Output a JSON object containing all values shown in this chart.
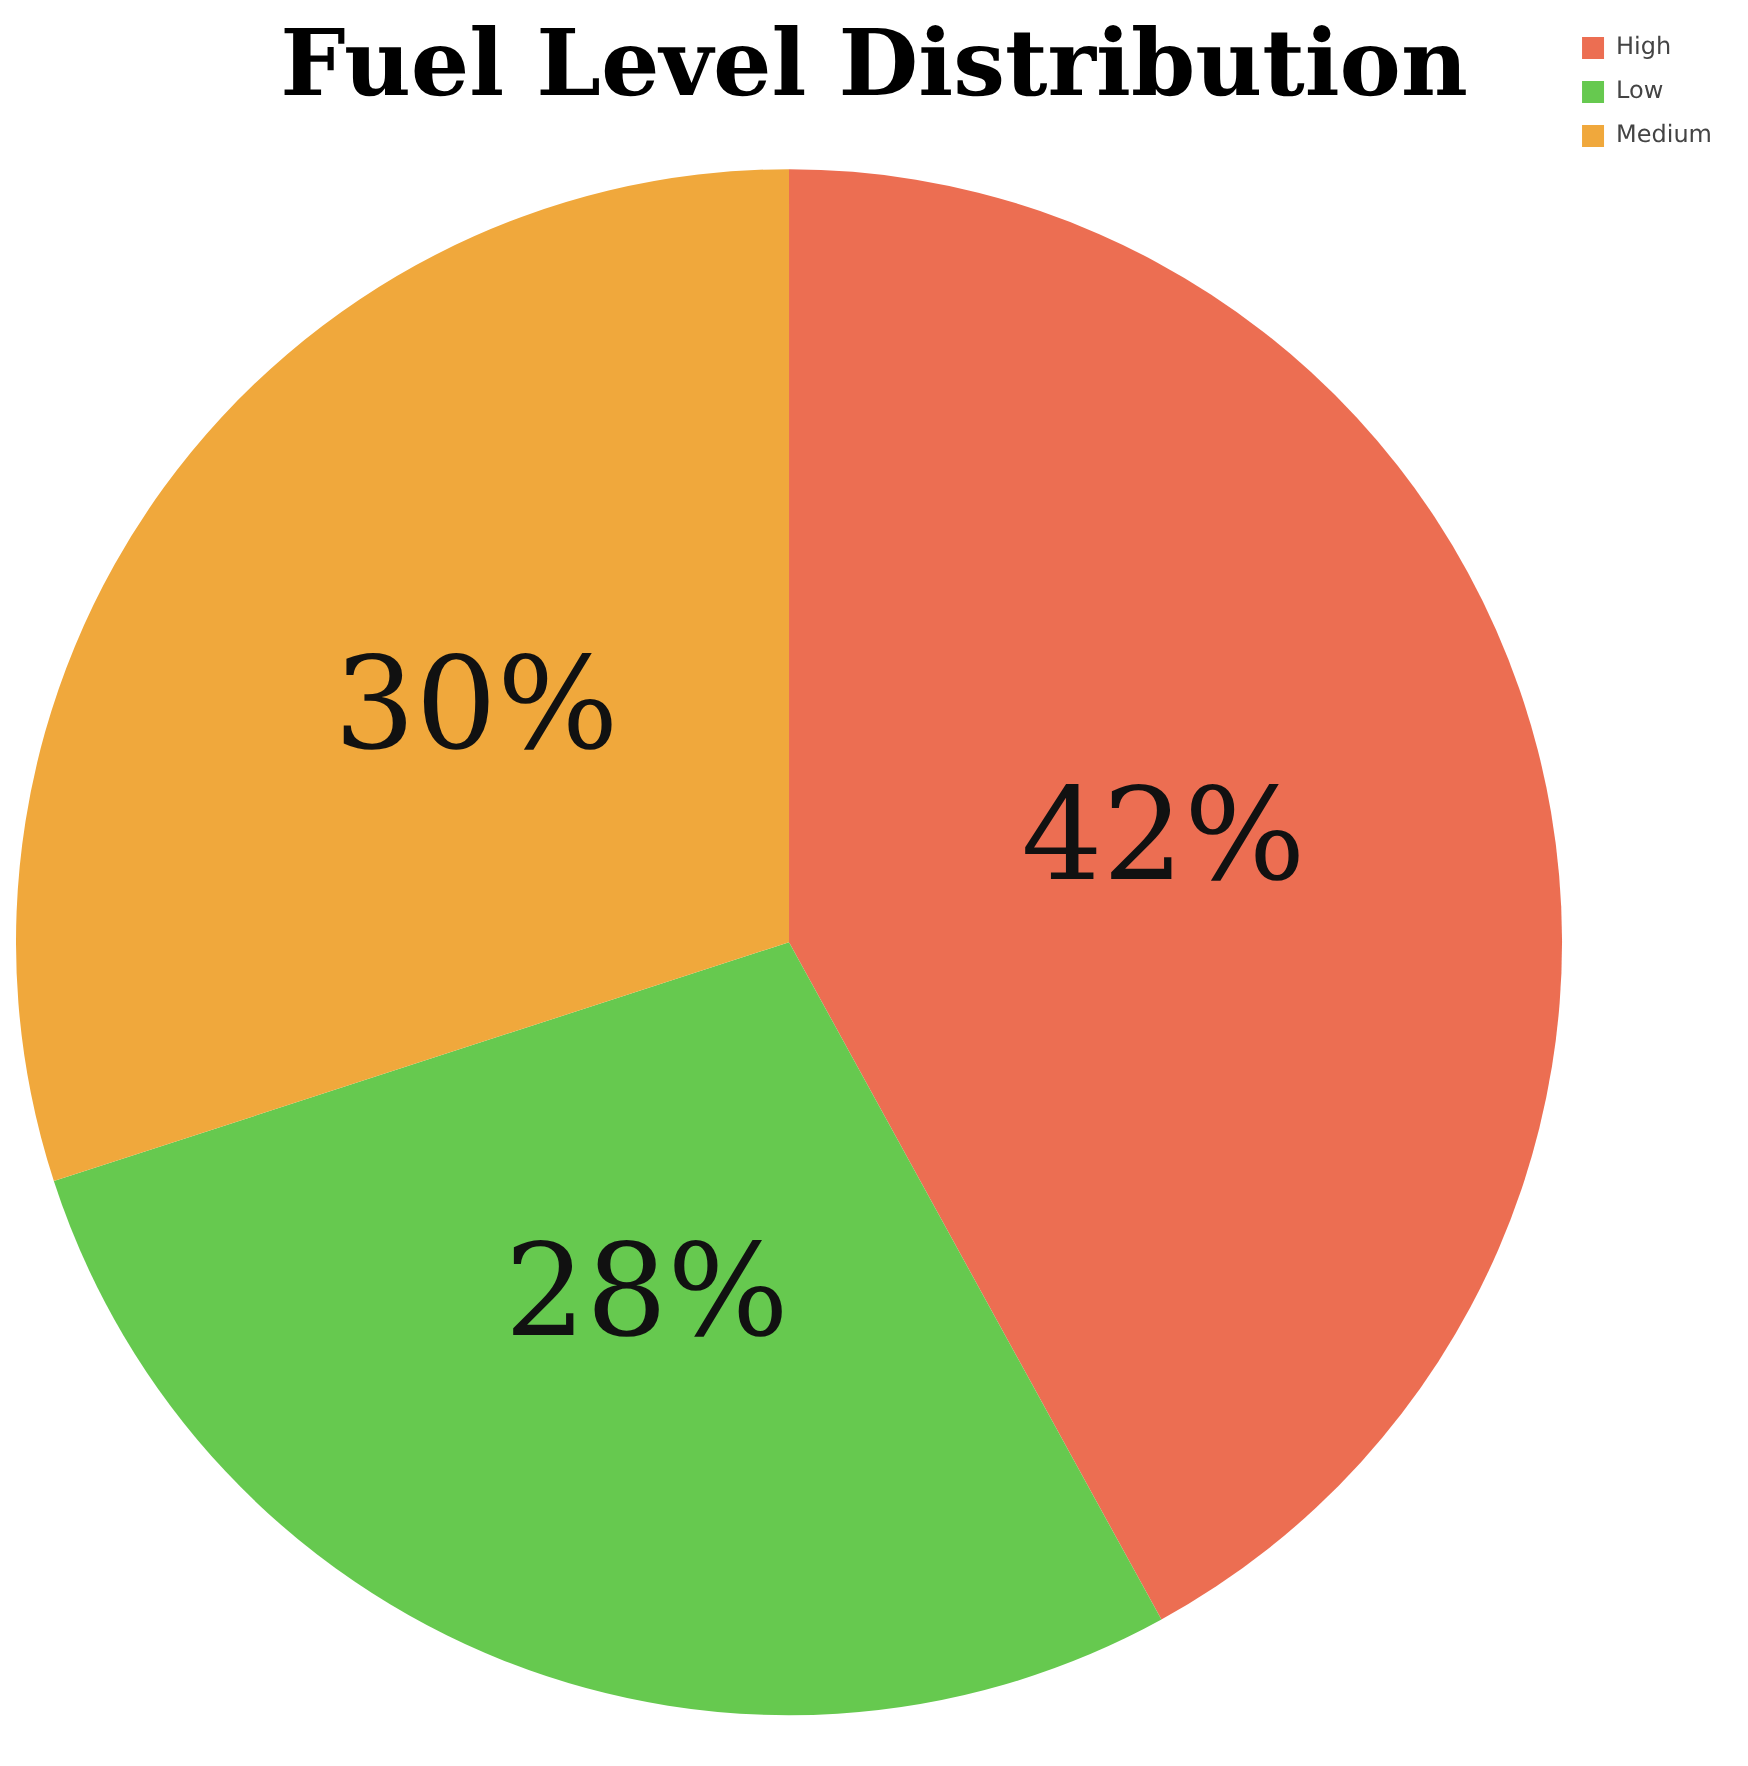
{
  "chart_data": {
    "type": "pie",
    "title": "Fuel Level Distribution",
    "categories": [
      "High",
      "Low",
      "Medium"
    ],
    "values": [
      42,
      28,
      30
    ],
    "colors": [
      "#ec6e52",
      "#66c94f",
      "#f0a83c"
    ],
    "value_labels": [
      "42%",
      "28%",
      "30%"
    ],
    "legend": "top right"
  }
}
